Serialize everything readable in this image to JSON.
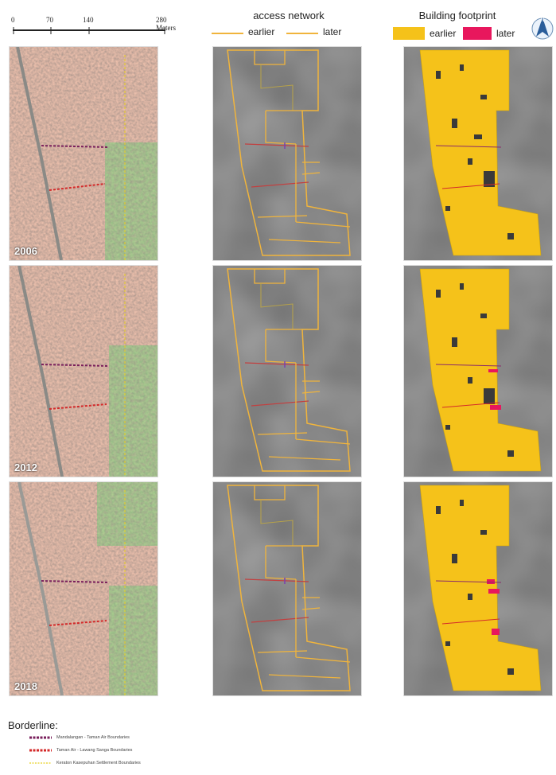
{
  "scale_bar": {
    "ticks": [
      "0",
      "70",
      "140",
      "280 Meters"
    ]
  },
  "access_network": {
    "title": "access network",
    "legend": [
      {
        "label": "earlier",
        "color": "#f0b43c"
      },
      {
        "label": "later",
        "color": "#f0b43c"
      }
    ]
  },
  "building_footprint": {
    "title": "Building footprint",
    "legend": [
      {
        "label": "earlier",
        "color": "#f5c21a"
      },
      {
        "label": "later",
        "color": "#e8175d"
      }
    ]
  },
  "north_arrow": {
    "icon": "north-arrow-icon"
  },
  "rows": [
    {
      "year": "2006"
    },
    {
      "year": "2012"
    },
    {
      "year": "2018"
    }
  ],
  "borderline": {
    "title": "Borderline:",
    "items": [
      {
        "label": "Mandalangan - Taman Air Boundaries",
        "color": "#7a1f5c"
      },
      {
        "label": "Taman Air - Lawang Sanga Boundaries",
        "color": "#d42a2a"
      },
      {
        "label": "Keraton Kasepuhan Settlement Boundaries",
        "color": "#e8d020"
      }
    ]
  }
}
